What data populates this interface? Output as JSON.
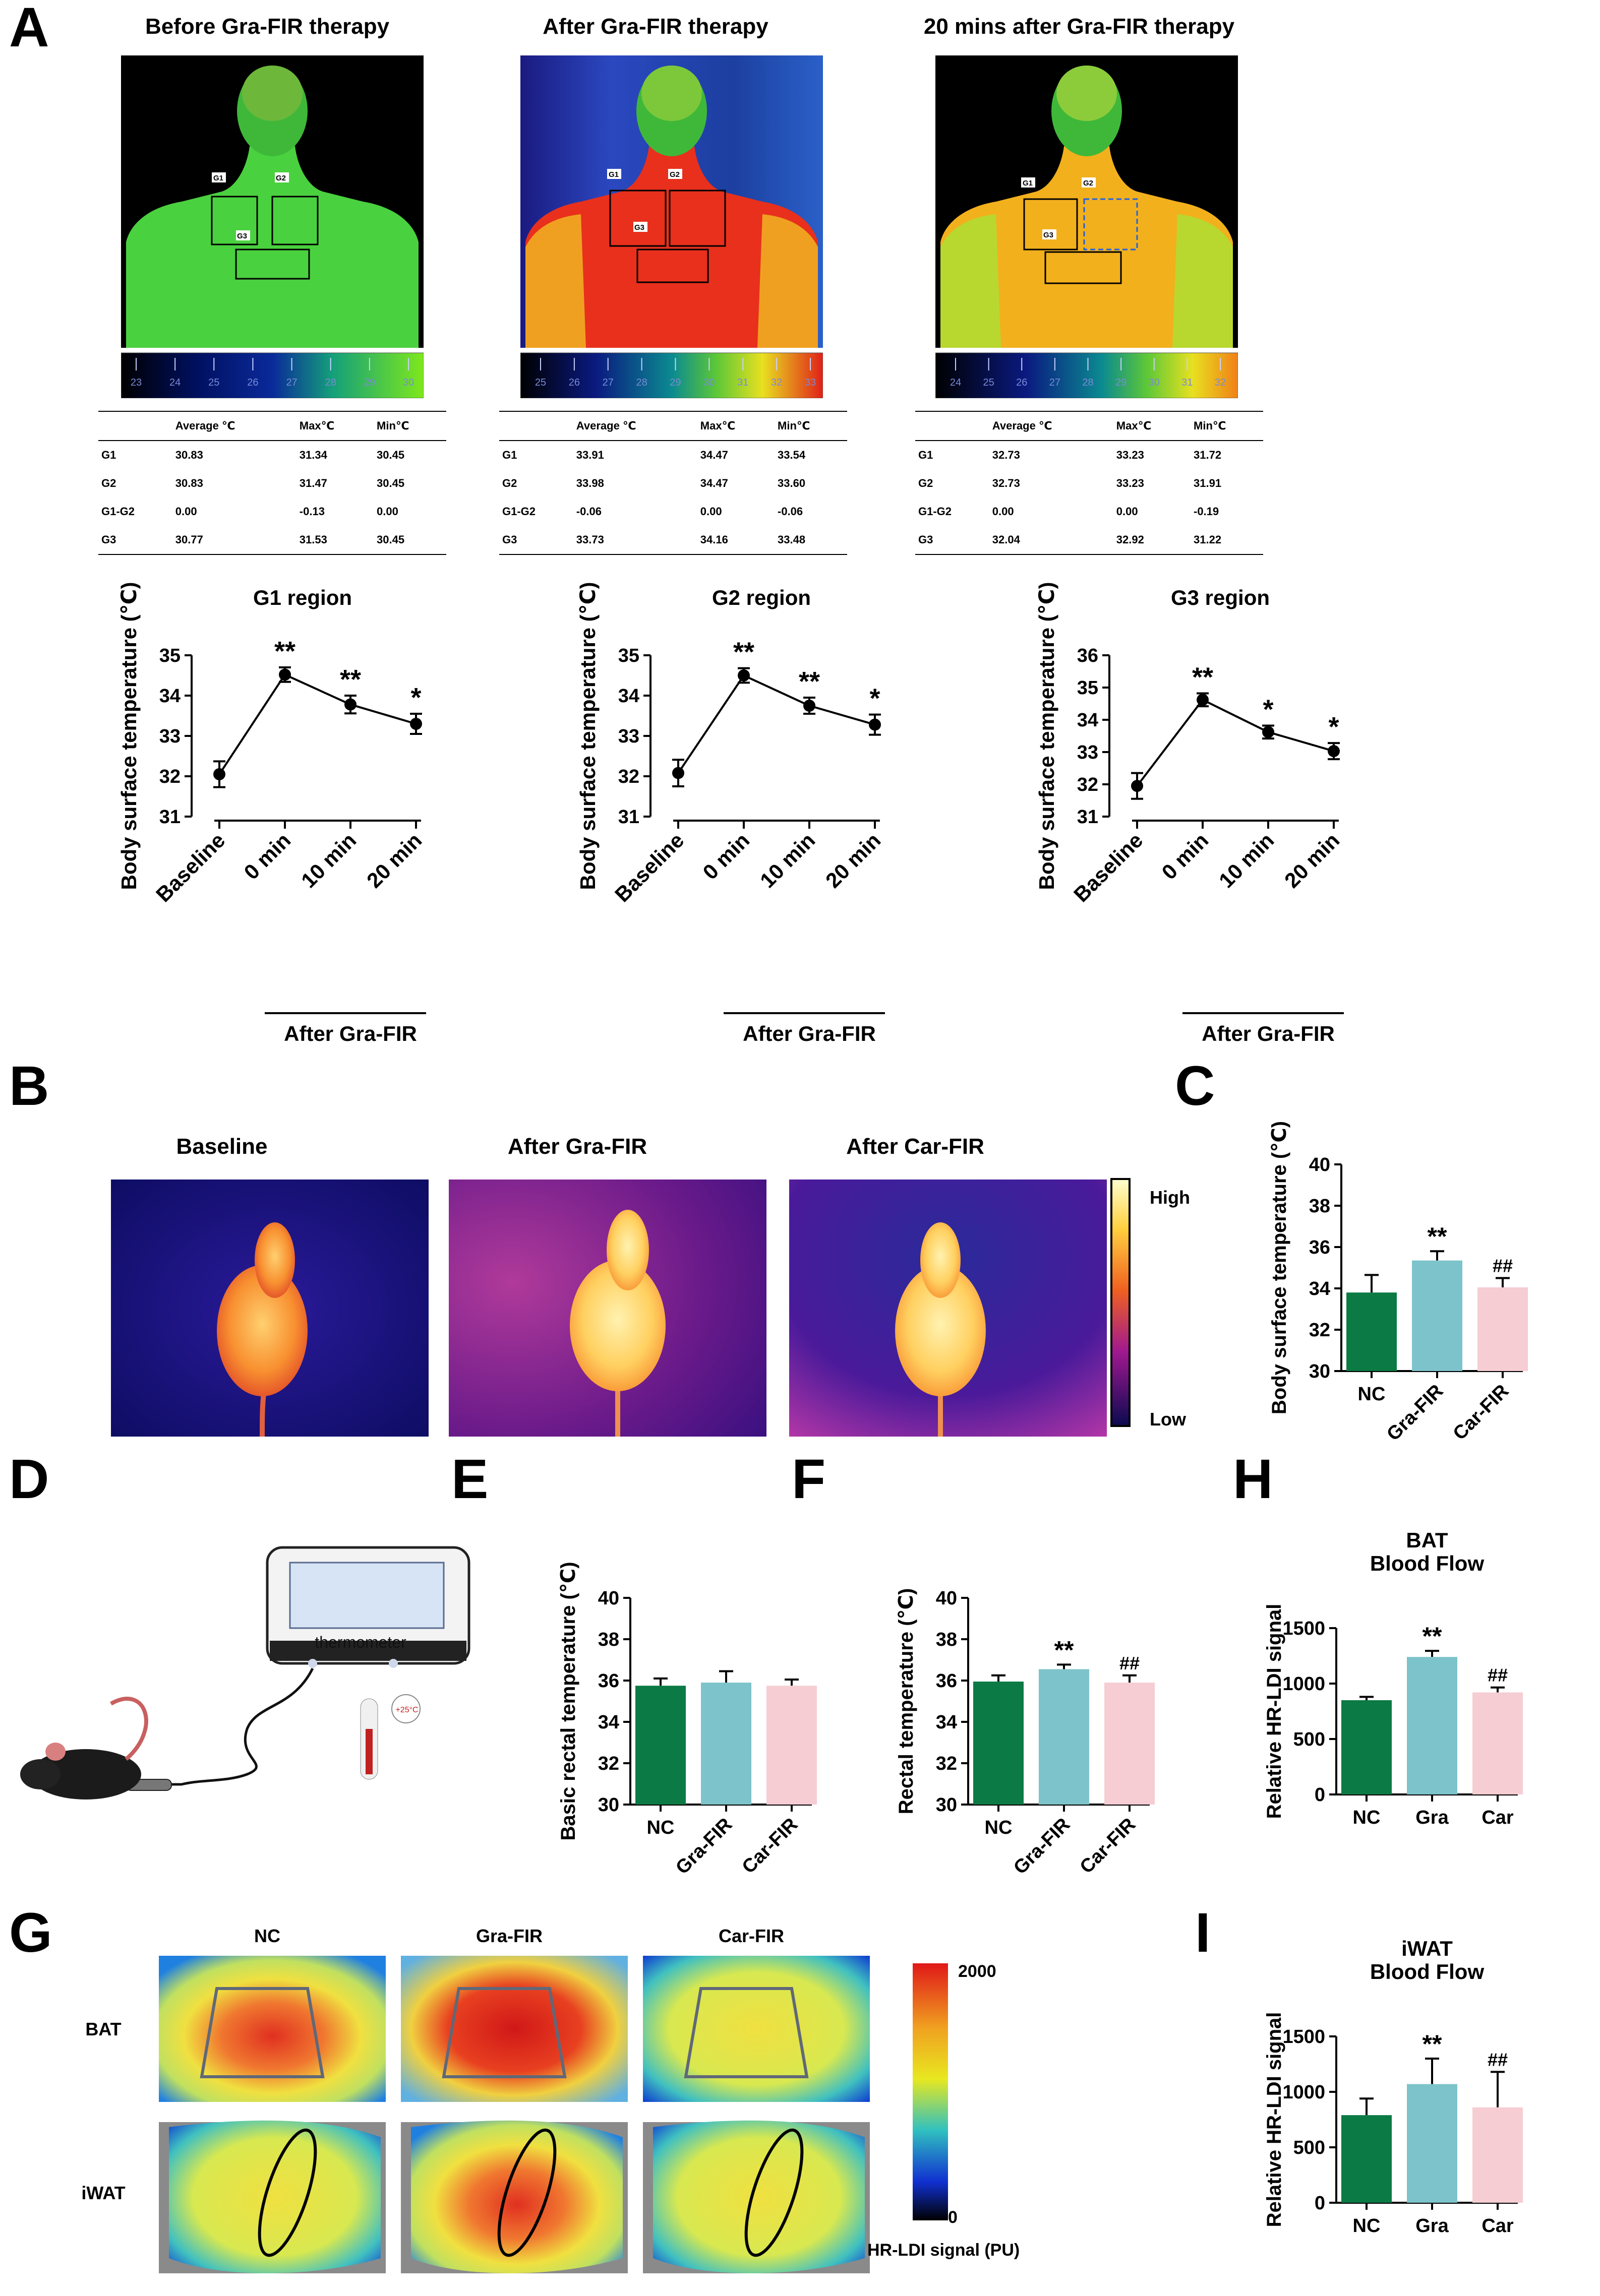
{
  "panels": {
    "a": "A",
    "b": "B",
    "c": "C",
    "d": "D",
    "e": "E",
    "f": "F",
    "g": "G",
    "h": "H",
    "i": "I"
  },
  "panel_a": {
    "images": [
      {
        "title": "Before Gra-FIR therapy",
        "scale": [
          "23",
          "24",
          "25",
          "26",
          "27",
          "28",
          "29",
          "30"
        ]
      },
      {
        "title": "After Gra-FIR therapy",
        "scale": [
          "25",
          "26",
          "27",
          "28",
          "29",
          "30",
          "31",
          "32",
          "33"
        ]
      },
      {
        "title": "20 mins after Gra-FIR therapy",
        "scale": [
          "24",
          "25",
          "26",
          "27",
          "28",
          "29",
          "30",
          "31",
          "32"
        ]
      }
    ],
    "region_labels": [
      "G1",
      "G2",
      "G3"
    ],
    "tables": [
      {
        "headers": [
          "",
          "Average ℃",
          "Max℃",
          "Min℃"
        ],
        "rows": [
          [
            "G1",
            "30.83",
            "31.34",
            "30.45"
          ],
          [
            "G2",
            "30.83",
            "31.47",
            "30.45"
          ],
          [
            "G1-G2",
            "0.00",
            "-0.13",
            "0.00"
          ],
          [
            "G3",
            "30.77",
            "31.53",
            "30.45"
          ]
        ]
      },
      {
        "headers": [
          "",
          "Average ℃",
          "Max℃",
          "Min℃"
        ],
        "rows": [
          [
            "G1",
            "33.91",
            "34.47",
            "33.54"
          ],
          [
            "G2",
            "33.98",
            "34.47",
            "33.60"
          ],
          [
            "G1-G2",
            "-0.06",
            "0.00",
            "-0.06"
          ],
          [
            "G3",
            "33.73",
            "34.16",
            "33.48"
          ]
        ]
      },
      {
        "headers": [
          "",
          "Average ℃",
          "Max℃",
          "Min℃"
        ],
        "rows": [
          [
            "G1",
            "32.73",
            "33.23",
            "31.72"
          ],
          [
            "G2",
            "32.73",
            "33.23",
            "31.91"
          ],
          [
            "G1-G2",
            "0.00",
            "0.00",
            "-0.19"
          ],
          [
            "G3",
            "32.04",
            "32.92",
            "31.22"
          ]
        ]
      }
    ]
  },
  "panel_b": {
    "labels": [
      "Baseline",
      "After Gra-FIR",
      "After Car-FIR"
    ],
    "colorbar_high": "High",
    "colorbar_low": "Low"
  },
  "panel_d": {
    "thermometer_label": "thermometer",
    "thermo_reading": "+25°C"
  },
  "panel_g": {
    "columns": [
      "NC",
      "Gra-FIR",
      "Car-FIR"
    ],
    "rows": [
      "BAT",
      "iWAT"
    ],
    "colorbar_max": "2000",
    "colorbar_min": "0",
    "colorbar_label": "HR-LDI signal (PU)"
  },
  "chart_data": [
    {
      "id": "A1",
      "type": "line",
      "title": "G1 region",
      "ylabel": "Body surface temperature (℃)",
      "categories": [
        "Baseline",
        "0 min",
        "10 min",
        "20 min"
      ],
      "values": [
        32.05,
        34.52,
        33.78,
        33.3
      ],
      "errors": [
        0.32,
        0.18,
        0.22,
        0.25
      ],
      "sig": [
        "",
        "**",
        "**",
        "*"
      ],
      "ylim": [
        31,
        35
      ],
      "yticks": [
        "31",
        "32",
        "33",
        "34",
        "35"
      ],
      "group_label": "After Gra-FIR"
    },
    {
      "id": "A2",
      "type": "line",
      "title": "G2 region",
      "ylabel": "Body surface temperature (℃)",
      "categories": [
        "Baseline",
        "0 min",
        "10 min",
        "20 min"
      ],
      "values": [
        32.08,
        34.5,
        33.75,
        33.28
      ],
      "errors": [
        0.33,
        0.18,
        0.2,
        0.25
      ],
      "sig": [
        "",
        "**",
        "**",
        "*"
      ],
      "ylim": [
        31,
        35
      ],
      "yticks": [
        "31",
        "32",
        "33",
        "34",
        "35"
      ],
      "group_label": "After Gra-FIR"
    },
    {
      "id": "A3",
      "type": "line",
      "title": "G3 region",
      "ylabel": "Body surface temperature (℃)",
      "categories": [
        "Baseline",
        "0 min",
        "10 min",
        "20 min"
      ],
      "values": [
        31.95,
        34.62,
        33.62,
        33.03
      ],
      "errors": [
        0.4,
        0.2,
        0.2,
        0.25
      ],
      "sig": [
        "",
        "**",
        "*",
        "*"
      ],
      "ylim": [
        31,
        36
      ],
      "yticks": [
        "31",
        "32",
        "33",
        "34",
        "35",
        "36"
      ],
      "group_label": "After Gra-FIR"
    },
    {
      "id": "C",
      "type": "bar",
      "title": "",
      "ylabel": "Body surface temperature (℃)",
      "categories": [
        "NC",
        "Gra-FIR",
        "Car-FIR"
      ],
      "values": [
        33.8,
        35.35,
        34.05
      ],
      "errors": [
        0.85,
        0.45,
        0.45
      ],
      "sig": [
        "",
        "**",
        "##"
      ],
      "ylim": [
        30,
        40
      ],
      "yticks": [
        "30",
        "32",
        "34",
        "36",
        "38",
        "40"
      ]
    },
    {
      "id": "E",
      "type": "bar",
      "title": "",
      "ylabel": "Basic rectal temperature (℃)",
      "categories": [
        "NC",
        "Gra-FIR",
        "Car-FIR"
      ],
      "values": [
        35.75,
        35.9,
        35.75
      ],
      "errors": [
        0.35,
        0.55,
        0.3
      ],
      "sig": [
        "",
        "",
        ""
      ],
      "ylim": [
        30,
        40
      ],
      "yticks": [
        "30",
        "32",
        "34",
        "36",
        "38",
        "40"
      ]
    },
    {
      "id": "F",
      "type": "bar",
      "title": "",
      "ylabel": "Rectal temperature (℃)",
      "categories": [
        "NC",
        "Gra-FIR",
        "Car-FIR"
      ],
      "values": [
        35.95,
        36.55,
        35.9
      ],
      "errors": [
        0.3,
        0.22,
        0.35
      ],
      "sig": [
        "",
        "**",
        "##"
      ],
      "ylim": [
        30,
        40
      ],
      "yticks": [
        "30",
        "32",
        "34",
        "36",
        "38",
        "40"
      ]
    },
    {
      "id": "H",
      "type": "bar",
      "title": "BAT\nBlood Flow",
      "ylabel": "Relative HR-LDI signal",
      "categories": [
        "NC",
        "Gra",
        "Car"
      ],
      "values": [
        850,
        1240,
        920
      ],
      "errors": [
        30,
        55,
        45
      ],
      "sig": [
        "",
        "**",
        "##"
      ],
      "ylim": [
        0,
        1500
      ],
      "yticks": [
        "0",
        "500",
        "1000",
        "1500"
      ]
    },
    {
      "id": "I",
      "type": "bar",
      "title": "iWAT\nBlood Flow",
      "ylabel": "Relative HR-LDI signal",
      "categories": [
        "NC",
        "Gra",
        "Car"
      ],
      "values": [
        790,
        1070,
        860
      ],
      "errors": [
        150,
        230,
        320
      ],
      "sig": [
        "",
        "**",
        "##"
      ],
      "ylim": [
        0,
        1500
      ],
      "yticks": [
        "0",
        "500",
        "1000",
        "1500"
      ]
    }
  ],
  "colors": {
    "nc": "#0b7a45",
    "gra": "#7dc3cb",
    "car": "#f5cdd3"
  }
}
